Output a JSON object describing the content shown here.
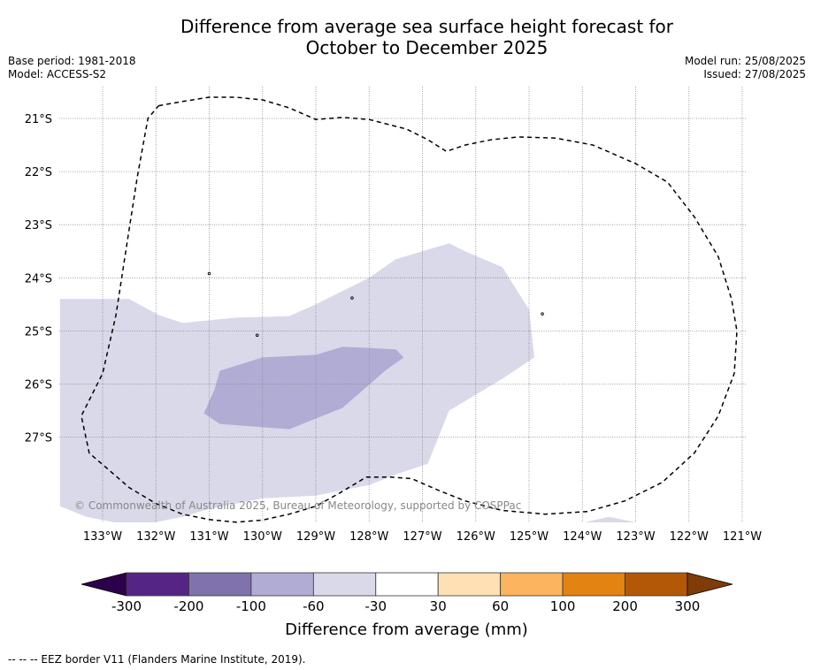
{
  "title_line1": "Difference from average sea surface height forecast for",
  "title_line2": "October to December 2025",
  "meta_left": [
    "Base period: 1981-2018",
    "Model: ACCESS-S2"
  ],
  "meta_right": [
    "Model run: 25/08/2025",
    "Issued: 27/08/2025"
  ],
  "copyright": "© Commonwealth of Australia 2025, Bureau of Meteorology, supported by COSPPac",
  "map": {
    "lon_range": [
      -133.8,
      -120.9
    ],
    "lat_range": [
      -29.0,
      -20.4
    ],
    "lon_ticks": [
      {
        "v": -133,
        "label": "133°W"
      },
      {
        "v": -132,
        "label": "132°W"
      },
      {
        "v": -131,
        "label": "131°W"
      },
      {
        "v": -130,
        "label": "130°W"
      },
      {
        "v": -129,
        "label": "129°W"
      },
      {
        "v": -128,
        "label": "128°W"
      },
      {
        "v": -127,
        "label": "127°W"
      },
      {
        "v": -126,
        "label": "126°W"
      },
      {
        "v": -125,
        "label": "125°W"
      },
      {
        "v": -124,
        "label": "124°W"
      },
      {
        "v": -123,
        "label": "123°W"
      },
      {
        "v": -122,
        "label": "122°W"
      },
      {
        "v": -121,
        "label": "121°W"
      }
    ],
    "lat_ticks": [
      {
        "v": -21,
        "label": "21°S"
      },
      {
        "v": -22,
        "label": "22°S"
      },
      {
        "v": -23,
        "label": "23°S"
      },
      {
        "v": -24,
        "label": "24°S"
      },
      {
        "v": -25,
        "label": "25°S"
      },
      {
        "v": -26,
        "label": "26°S"
      },
      {
        "v": -27,
        "label": "27°S"
      }
    ],
    "grid": true,
    "regions": [
      {
        "category": "-60 to -30",
        "color": "#d9d9ea",
        "coords": [
          [
            -133.8,
            -24.4
          ],
          [
            -132.5,
            -24.4
          ],
          [
            -131.95,
            -24.7
          ],
          [
            -131.5,
            -24.85
          ],
          [
            -130.5,
            -24.75
          ],
          [
            -129.5,
            -24.72
          ],
          [
            -129.0,
            -24.5
          ],
          [
            -128.0,
            -24.0
          ],
          [
            -127.5,
            -23.65
          ],
          [
            -126.5,
            -23.35
          ],
          [
            -126.2,
            -23.5
          ],
          [
            -125.5,
            -23.8
          ],
          [
            -125.0,
            -24.6
          ],
          [
            -124.9,
            -25.5
          ],
          [
            -125.5,
            -25.9
          ],
          [
            -126.0,
            -26.2
          ],
          [
            -126.5,
            -26.5
          ],
          [
            -126.9,
            -27.5
          ],
          [
            -127.5,
            -27.7
          ],
          [
            -128.0,
            -27.9
          ],
          [
            -129.0,
            -28.1
          ],
          [
            -130.0,
            -28.15
          ],
          [
            -131.0,
            -28.35
          ],
          [
            -131.5,
            -28.5
          ],
          [
            -132.0,
            -28.6
          ],
          [
            -132.5,
            -28.65
          ],
          [
            -132.8,
            -28.6
          ],
          [
            -133.3,
            -28.5
          ],
          [
            -133.8,
            -28.3
          ]
        ]
      },
      {
        "category": "-100 to -60",
        "color": "#b1acd4",
        "coords": [
          [
            -130.8,
            -25.75
          ],
          [
            -130.0,
            -25.5
          ],
          [
            -129.0,
            -25.45
          ],
          [
            -128.5,
            -25.3
          ],
          [
            -128.0,
            -25.32
          ],
          [
            -127.5,
            -25.35
          ],
          [
            -127.35,
            -25.5
          ],
          [
            -127.7,
            -25.75
          ],
          [
            -128.5,
            -26.45
          ],
          [
            -129.5,
            -26.85
          ],
          [
            -130.8,
            -26.75
          ],
          [
            -131.1,
            -26.55
          ],
          [
            -130.9,
            -26.1
          ]
        ]
      },
      {
        "category": "-60 to -30",
        "color": "#d9d9ea",
        "coords": [
          [
            -124.8,
            -29.0
          ],
          [
            -124.5,
            -28.72
          ],
          [
            -123.5,
            -28.5
          ],
          [
            -122.5,
            -28.7
          ],
          [
            -122.1,
            -29.0
          ]
        ]
      }
    ],
    "eez_border": [
      [
        -131.95,
        -20.76
      ],
      [
        -131.5,
        -20.68
      ],
      [
        -131.0,
        -20.6
      ],
      [
        -130.5,
        -20.6
      ],
      [
        -130.0,
        -20.65
      ],
      [
        -129.5,
        -20.8
      ],
      [
        -129.0,
        -21.02
      ],
      [
        -128.5,
        -20.98
      ],
      [
        -128.0,
        -21.02
      ],
      [
        -127.3,
        -21.2
      ],
      [
        -126.9,
        -21.4
      ],
      [
        -126.55,
        -21.62
      ],
      [
        -126.2,
        -21.5
      ],
      [
        -125.7,
        -21.4
      ],
      [
        -125.2,
        -21.35
      ],
      [
        -124.5,
        -21.37
      ],
      [
        -123.8,
        -21.5
      ],
      [
        -123.0,
        -21.85
      ],
      [
        -122.4,
        -22.2
      ],
      [
        -121.9,
        -22.85
      ],
      [
        -121.45,
        -23.6
      ],
      [
        -121.2,
        -24.4
      ],
      [
        -121.1,
        -25.0
      ],
      [
        -121.15,
        -25.8
      ],
      [
        -121.45,
        -26.6
      ],
      [
        -121.9,
        -27.3
      ],
      [
        -122.5,
        -27.85
      ],
      [
        -123.2,
        -28.2
      ],
      [
        -123.9,
        -28.4
      ],
      [
        -124.7,
        -28.45
      ],
      [
        -125.5,
        -28.38
      ],
      [
        -126.2,
        -28.2
      ],
      [
        -126.7,
        -28.0
      ],
      [
        -127.2,
        -27.78
      ],
      [
        -127.6,
        -27.75
      ],
      [
        -128.05,
        -27.75
      ],
      [
        -128.55,
        -28.05
      ],
      [
        -129.0,
        -28.3
      ],
      [
        -129.5,
        -28.45
      ],
      [
        -130.0,
        -28.56
      ],
      [
        -130.5,
        -28.6
      ],
      [
        -131.0,
        -28.55
      ],
      [
        -131.5,
        -28.45
      ],
      [
        -132.0,
        -28.25
      ],
      [
        -132.5,
        -27.95
      ],
      [
        -132.9,
        -27.6
      ],
      [
        -133.25,
        -27.3
      ],
      [
        -133.4,
        -26.6
      ],
      [
        -133.0,
        -25.8
      ],
      [
        -132.75,
        -24.7
      ],
      [
        -132.55,
        -23.4
      ],
      [
        -132.35,
        -22.1
      ],
      [
        -132.15,
        -21.0
      ],
      [
        -131.95,
        -20.76
      ]
    ],
    "islands": [
      {
        "lon": -128.32,
        "lat": -24.38
      },
      {
        "lon": -130.1,
        "lat": -25.08
      },
      {
        "lon": -131.0,
        "lat": -23.92
      },
      {
        "lon": -124.75,
        "lat": -24.68
      }
    ]
  },
  "colorbar": {
    "bins": [
      {
        "color": "#552585"
      },
      {
        "color": "#7f72ad"
      },
      {
        "color": "#b1acd4"
      },
      {
        "color": "#d9d9ea"
      },
      {
        "color": "#ffffff"
      },
      {
        "color": "#fee0b4"
      },
      {
        "color": "#fcb45e"
      },
      {
        "color": "#e38312"
      },
      {
        "color": "#b35806"
      }
    ],
    "under_color": "#2d004b",
    "over_color": "#7f3b08",
    "labels": [
      "-300",
      "-200",
      "-100",
      "-60",
      "-30",
      "30",
      "60",
      "100",
      "200",
      "300"
    ],
    "title": "Difference from average (mm)"
  },
  "footnote": "--  --  -- EEZ border V11 (Flanders Marine Institute, 2019)."
}
